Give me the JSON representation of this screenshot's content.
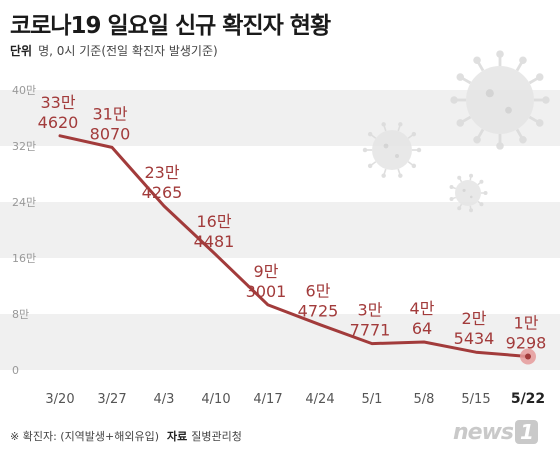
{
  "header": {
    "title": "코로나19 일요일 신규 확진자 현황",
    "unit_label": "단위",
    "unit_text": "명, 0시 기준(전일 확진자 발생기준)"
  },
  "footer": {
    "note": "※ 확진자: (지역발생+해외유입)",
    "source_label": "자료",
    "source": "질병관리청",
    "logo_text": "news",
    "logo_badge": "1"
  },
  "colors": {
    "line": "#a23b3b",
    "label": "#a23b3b",
    "band": "#f0f0f0",
    "tick": "#999999",
    "highlight_dot": "#e59a9a"
  },
  "chart_data": {
    "type": "line",
    "title": "코로나19 일요일 신규 확진자 현황",
    "xlabel": "",
    "ylabel": "",
    "categories": [
      "3/20",
      "3/27",
      "4/3",
      "4/10",
      "4/17",
      "4/24",
      "5/1",
      "5/8",
      "5/15",
      "5/22"
    ],
    "values": [
      334620,
      318070,
      234265,
      164481,
      93001,
      64725,
      37771,
      40064,
      25434,
      19298
    ],
    "value_labels": [
      [
        "33만",
        "4620"
      ],
      [
        "31만",
        "8070"
      ],
      [
        "23만",
        "4265"
      ],
      [
        "16만",
        "4481"
      ],
      [
        "9만",
        "3001"
      ],
      [
        "6만",
        "4725"
      ],
      [
        "3만",
        "7771"
      ],
      [
        "4만",
        "64"
      ],
      [
        "2만",
        "5434"
      ],
      [
        "1만",
        "9298"
      ]
    ],
    "y_ticks": [
      {
        "value": 0,
        "label": "0"
      },
      {
        "value": 80000,
        "label": "8만"
      },
      {
        "value": 160000,
        "label": "16만"
      },
      {
        "value": 240000,
        "label": "24만"
      },
      {
        "value": 320000,
        "label": "32만"
      },
      {
        "value": 400000,
        "label": "40만"
      }
    ],
    "ylim": [
      0,
      400000
    ],
    "grid": "alternating-bands",
    "highlight_last": true
  }
}
